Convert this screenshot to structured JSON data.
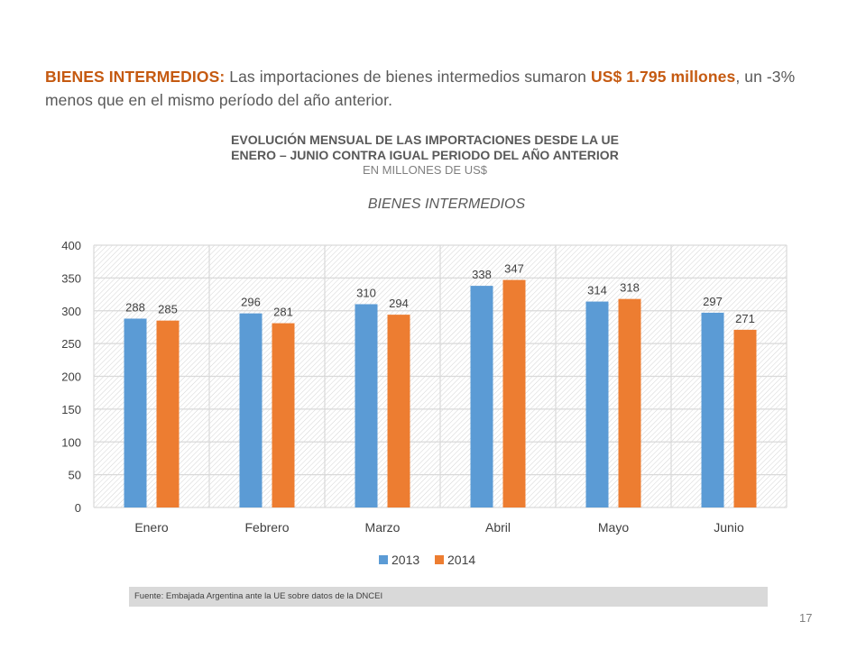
{
  "intro": {
    "label": "BIENES INTERMEDIOS:",
    "text_a": " Las importaciones de bienes intermedios sumaron ",
    "amount": "US$  1.795 millones",
    "text_b": ", un -3% menos que en el mismo período del año anterior."
  },
  "header": {
    "line1": "EVOLUCIÓN MENSUAL DE LAS IMPORTACIONES DESDE LA UE",
    "line2": "ENERO – JUNIO CONTRA IGUAL PERIODO DEL AÑO ANTERIOR",
    "line3": "EN MILLONES DE US$"
  },
  "subtitle": "BIENES INTERMEDIOS",
  "chart_data": {
    "type": "bar",
    "categories": [
      "Enero",
      "Febrero",
      "Marzo",
      "Abril",
      "Mayo",
      "Junio"
    ],
    "series": [
      {
        "name": "2013",
        "values": [
          288,
          296,
          310,
          338,
          314,
          297
        ],
        "color": "#5b9bd5"
      },
      {
        "name": "2014",
        "values": [
          285,
          281,
          294,
          347,
          318,
          271
        ],
        "color": "#ed7d31"
      }
    ],
    "ylim": [
      0,
      400
    ],
    "yticks": [
      0,
      50,
      100,
      150,
      200,
      250,
      300,
      350,
      400
    ],
    "grid": true,
    "legend": "bottom"
  },
  "source": "Fuente: Embajada  Argentina ante la UE sobre datos de la DNCEI",
  "page_number": "17"
}
